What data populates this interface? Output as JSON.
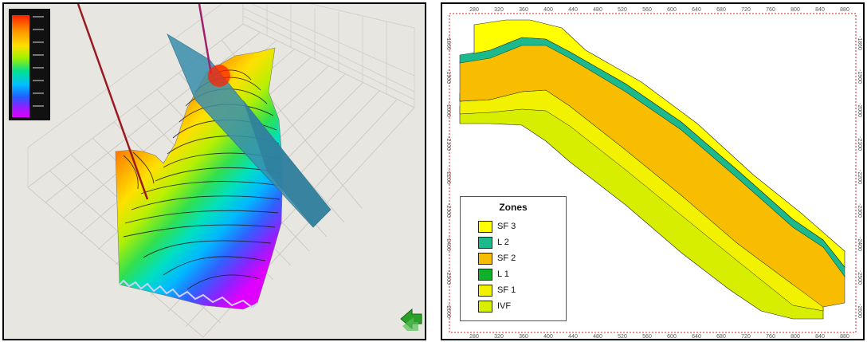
{
  "left_panel": {
    "colorbar_colors": [
      "#ff1a00",
      "#ff8800",
      "#ffd000",
      "#c8f000",
      "#40e040",
      "#00e8b0",
      "#00c0ff",
      "#2060ff",
      "#8020ff",
      "#e000ff"
    ],
    "icons": [
      "3d-surface-view",
      "well-trajectory",
      "fault-plane",
      "compass-arrow-icon"
    ]
  },
  "right_panel": {
    "legend": {
      "title": "Zones",
      "items": [
        {
          "label": "SF 3",
          "color": "#ffff00"
        },
        {
          "label": "L 2",
          "color": "#1cb98c"
        },
        {
          "label": "SF 2",
          "color": "#f9bd00"
        },
        {
          "label": "L 1",
          "color": "#11b02a"
        },
        {
          "label": "SF 1",
          "color": "#f2f200"
        },
        {
          "label": "IVF",
          "color": "#d7ef00"
        }
      ]
    },
    "top_axis_ticks": [
      "280",
      "320",
      "360",
      "400",
      "440",
      "480",
      "520",
      "560",
      "600",
      "640",
      "680",
      "720",
      "760",
      "800",
      "840",
      "880"
    ]
  }
}
